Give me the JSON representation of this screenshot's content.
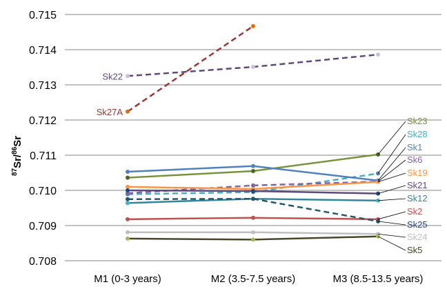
{
  "chart_data": {
    "type": "line",
    "title": "",
    "xlabel": "",
    "ylabel": "87Sr/86Sr",
    "ylabel_parts": {
      "sup1": "87",
      "base1": "Sr/",
      "sup2": "86",
      "base2": "Sr"
    },
    "ylim": [
      0.708,
      0.715
    ],
    "yticks": [
      "0.708",
      "0.709",
      "0.710",
      "0.711",
      "0.712",
      "0.713",
      "0.714",
      "0.715"
    ],
    "grid": true,
    "categories": [
      "M1 (0-3 years)",
      "M2 (3.5-7.5 years)",
      "M3 (8.5-13.5 years)"
    ],
    "series": [
      {
        "name": "Sk22",
        "values": [
          0.71325,
          0.71351,
          0.71386
        ],
        "color": "#5F497A",
        "marker": "#CCC0DA",
        "dashed": true,
        "label_at": "start"
      },
      {
        "name": "Sk27A",
        "values": [
          0.71224,
          0.71467,
          null
        ],
        "color": "#953735",
        "marker": "#E46C0A",
        "dashed": true,
        "label_at": "start"
      },
      {
        "name": "Sk23",
        "values": [
          0.71036,
          0.71055,
          0.71102
        ],
        "color": "#77933C",
        "marker": "#4F6228",
        "dashed": false,
        "label_at": "end"
      },
      {
        "name": "Sk28",
        "values": [
          0.70989,
          0.70995,
          0.71048
        ],
        "color": "#4BACC6",
        "marker": "#4F81BD",
        "dashed": true,
        "label_at": "end"
      },
      {
        "name": "Sk1",
        "values": [
          0.71053,
          0.71069,
          0.71028
        ],
        "color": "#4F81BD",
        "marker": "#4F81BD",
        "dashed": false,
        "label_at": "end"
      },
      {
        "name": "Sk6",
        "values": [
          0.70992,
          0.71014,
          0.71025
        ],
        "color": "#8064A2",
        "marker": "#8064A2",
        "dashed": true,
        "label_at": "end"
      },
      {
        "name": "Sk19",
        "values": [
          0.7101,
          0.71004,
          0.71024
        ],
        "color": "#F79646",
        "marker": "#F79646",
        "dashed": false,
        "label_at": "end"
      },
      {
        "name": "Sk21",
        "values": [
          0.71,
          0.70998,
          0.70991
        ],
        "color": "#5F497A",
        "marker": "#1F497D",
        "dashed": false,
        "label_at": "end"
      },
      {
        "name": "Sk12",
        "values": [
          0.70964,
          0.70976,
          0.70971
        ],
        "color": "#31859C",
        "marker": "#4BACC6",
        "dashed": false,
        "label_at": "end"
      },
      {
        "name": "Sk2",
        "values": [
          0.70918,
          0.70922,
          0.70918
        ],
        "color": "#C0504D",
        "marker": "#C0504D",
        "dashed": false,
        "label_at": "end"
      },
      {
        "name": "Sk25",
        "values": [
          0.70975,
          0.70976,
          0.70912
        ],
        "color": "#215968",
        "marker": "#215968",
        "dashed": true,
        "label_at": "end",
        "label_color": "#1F497D"
      },
      {
        "name": "Sk24",
        "values": [
          0.70881,
          0.70881,
          0.70876
        ],
        "color": "#BFBFBF",
        "marker": "#BFBFBF",
        "dashed": false,
        "label_at": "end"
      },
      {
        "name": "Sk5",
        "values": [
          0.70863,
          0.7086,
          0.70869
        ],
        "color": "#4A452A",
        "marker": "#9BBB59",
        "dashed": false,
        "label_at": "end"
      }
    ]
  }
}
